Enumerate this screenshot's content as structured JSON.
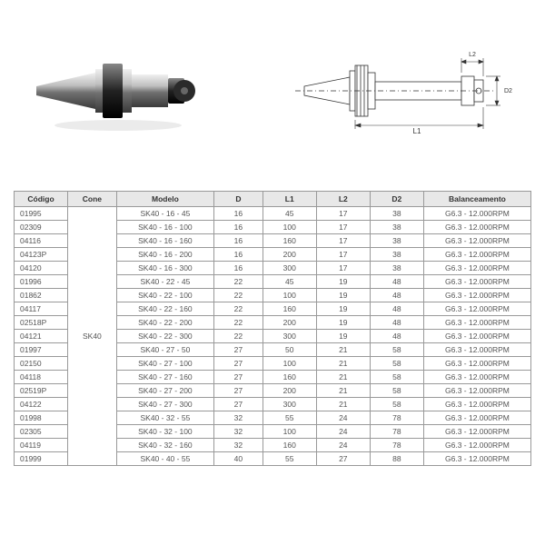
{
  "table": {
    "headers": [
      "Código",
      "Cone",
      "Modelo",
      "D",
      "L1",
      "L2",
      "D2",
      "Balanceamento"
    ],
    "cone": "SK40",
    "rows": [
      {
        "codigo": "01995",
        "modelo": "SK40 - 16 - 45",
        "d": "16",
        "l1": "45",
        "l2": "17",
        "d2": "38",
        "bal": "G6.3 - 12.000RPM"
      },
      {
        "codigo": "02309",
        "modelo": "SK40 - 16 - 100",
        "d": "16",
        "l1": "100",
        "l2": "17",
        "d2": "38",
        "bal": "G6.3 - 12.000RPM"
      },
      {
        "codigo": "04116",
        "modelo": "SK40 - 16 - 160",
        "d": "16",
        "l1": "160",
        "l2": "17",
        "d2": "38",
        "bal": "G6.3 - 12.000RPM"
      },
      {
        "codigo": "04123P",
        "modelo": "SK40 - 16 - 200",
        "d": "16",
        "l1": "200",
        "l2": "17",
        "d2": "38",
        "bal": "G6.3 - 12.000RPM"
      },
      {
        "codigo": "04120",
        "modelo": "SK40 - 16 - 300",
        "d": "16",
        "l1": "300",
        "l2": "17",
        "d2": "38",
        "bal": "G6.3 - 12.000RPM"
      },
      {
        "codigo": "01996",
        "modelo": "SK40 - 22 - 45",
        "d": "22",
        "l1": "45",
        "l2": "19",
        "d2": "48",
        "bal": "G6.3 - 12.000RPM"
      },
      {
        "codigo": "01862",
        "modelo": "SK40 - 22 - 100",
        "d": "22",
        "l1": "100",
        "l2": "19",
        "d2": "48",
        "bal": "G6.3 - 12.000RPM"
      },
      {
        "codigo": "04117",
        "modelo": "SK40 - 22 - 160",
        "d": "22",
        "l1": "160",
        "l2": "19",
        "d2": "48",
        "bal": "G6.3 - 12.000RPM"
      },
      {
        "codigo": "02518P",
        "modelo": "SK40 - 22 - 200",
        "d": "22",
        "l1": "200",
        "l2": "19",
        "d2": "48",
        "bal": "G6.3 - 12.000RPM"
      },
      {
        "codigo": "04121",
        "modelo": "SK40 - 22 - 300",
        "d": "22",
        "l1": "300",
        "l2": "19",
        "d2": "48",
        "bal": "G6.3 - 12.000RPM"
      },
      {
        "codigo": "01997",
        "modelo": "SK40 - 27 - 50",
        "d": "27",
        "l1": "50",
        "l2": "21",
        "d2": "58",
        "bal": "G6.3 - 12.000RPM"
      },
      {
        "codigo": "02150",
        "modelo": "SK40 - 27 - 100",
        "d": "27",
        "l1": "100",
        "l2": "21",
        "d2": "58",
        "bal": "G6.3 - 12.000RPM"
      },
      {
        "codigo": "04118",
        "modelo": "SK40 - 27 - 160",
        "d": "27",
        "l1": "160",
        "l2": "21",
        "d2": "58",
        "bal": "G6.3 - 12.000RPM"
      },
      {
        "codigo": "02519P",
        "modelo": "SK40 - 27 - 200",
        "d": "27",
        "l1": "200",
        "l2": "21",
        "d2": "58",
        "bal": "G6.3 - 12.000RPM"
      },
      {
        "codigo": "04122",
        "modelo": "SK40 - 27 - 300",
        "d": "27",
        "l1": "300",
        "l2": "21",
        "d2": "58",
        "bal": "G6.3 - 12.000RPM"
      },
      {
        "codigo": "01998",
        "modelo": "SK40 - 32 - 55",
        "d": "32",
        "l1": "55",
        "l2": "24",
        "d2": "78",
        "bal": "G6.3 - 12.000RPM"
      },
      {
        "codigo": "02305",
        "modelo": "SK40 - 32 - 100",
        "d": "32",
        "l1": "100",
        "l2": "24",
        "d2": "78",
        "bal": "G6.3 - 12.000RPM"
      },
      {
        "codigo": "04119",
        "modelo": "SK40 - 32 - 160",
        "d": "32",
        "l1": "160",
        "l2": "24",
        "d2": "78",
        "bal": "G6.3 - 12.000RPM"
      },
      {
        "codigo": "01999",
        "modelo": "SK40 - 40 - 55",
        "d": "40",
        "l1": "55",
        "l2": "27",
        "d2": "88",
        "bal": "G6.3 - 12.000RPM"
      }
    ]
  },
  "diagram_labels": {
    "l1": "L1",
    "l2": "L2",
    "d2": "D2"
  },
  "colors": {
    "header_bg": "#e8e8e8",
    "border": "#999999",
    "text": "#555555"
  }
}
